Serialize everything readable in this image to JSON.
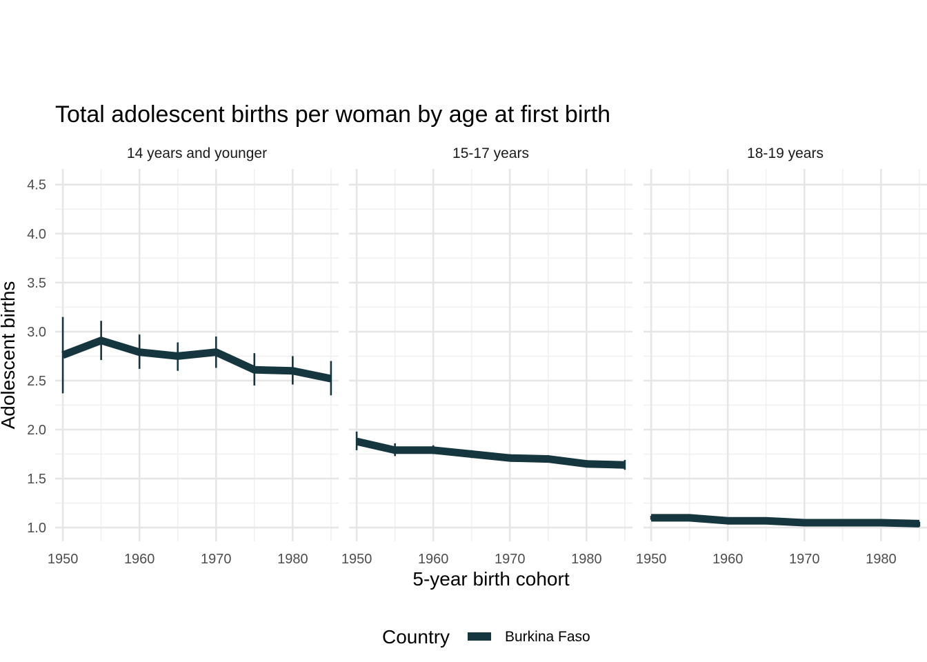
{
  "chart_data": {
    "type": "line",
    "title": "Total adolescent births per woman by age at first birth",
    "xlabel": "5-year birth cohort",
    "ylabel": "Adolescent births",
    "x": [
      1950,
      1955,
      1960,
      1965,
      1970,
      1975,
      1980,
      1985
    ],
    "x_ticks": [
      1950,
      1960,
      1970,
      1980
    ],
    "y_ticks": [
      1.0,
      1.5,
      2.0,
      2.5,
      3.0,
      3.5,
      4.0,
      4.5
    ],
    "ylim": [
      0.86,
      4.66
    ],
    "xlim": [
      1949,
      1986
    ],
    "grid": true,
    "legend": {
      "title": "Country",
      "position": "bottom"
    },
    "series_color": "#15353f",
    "panels": [
      {
        "label": "14 years and younger",
        "series": [
          {
            "name": "Burkina Faso",
            "values": [
              2.76,
              2.91,
              2.79,
              2.75,
              2.79,
              2.61,
              2.6,
              2.52
            ],
            "lower": [
              2.37,
              2.71,
              2.62,
              2.6,
              2.63,
              2.45,
              2.46,
              2.35
            ],
            "upper": [
              3.15,
              3.11,
              2.97,
              2.89,
              2.95,
              2.78,
              2.75,
              2.7
            ]
          }
        ]
      },
      {
        "label": "15-17 years",
        "series": [
          {
            "name": "Burkina Faso",
            "values": [
              1.88,
              1.79,
              1.79,
              1.75,
              1.71,
              1.7,
              1.65,
              1.64
            ],
            "lower": [
              1.79,
              1.73,
              1.75,
              1.71,
              1.68,
              1.67,
              1.62,
              1.59
            ],
            "upper": [
              1.98,
              1.86,
              1.84,
              1.79,
              1.75,
              1.74,
              1.69,
              1.69
            ]
          }
        ]
      },
      {
        "label": "18-19 years",
        "series": [
          {
            "name": "Burkina Faso",
            "values": [
              1.1,
              1.1,
              1.07,
              1.07,
              1.05,
              1.05,
              1.05,
              1.04
            ],
            "lower": [
              1.08,
              1.08,
              1.05,
              1.05,
              1.03,
              1.03,
              1.03,
              1.01
            ],
            "upper": [
              1.12,
              1.12,
              1.09,
              1.09,
              1.07,
              1.07,
              1.07,
              1.06
            ]
          }
        ]
      }
    ]
  }
}
